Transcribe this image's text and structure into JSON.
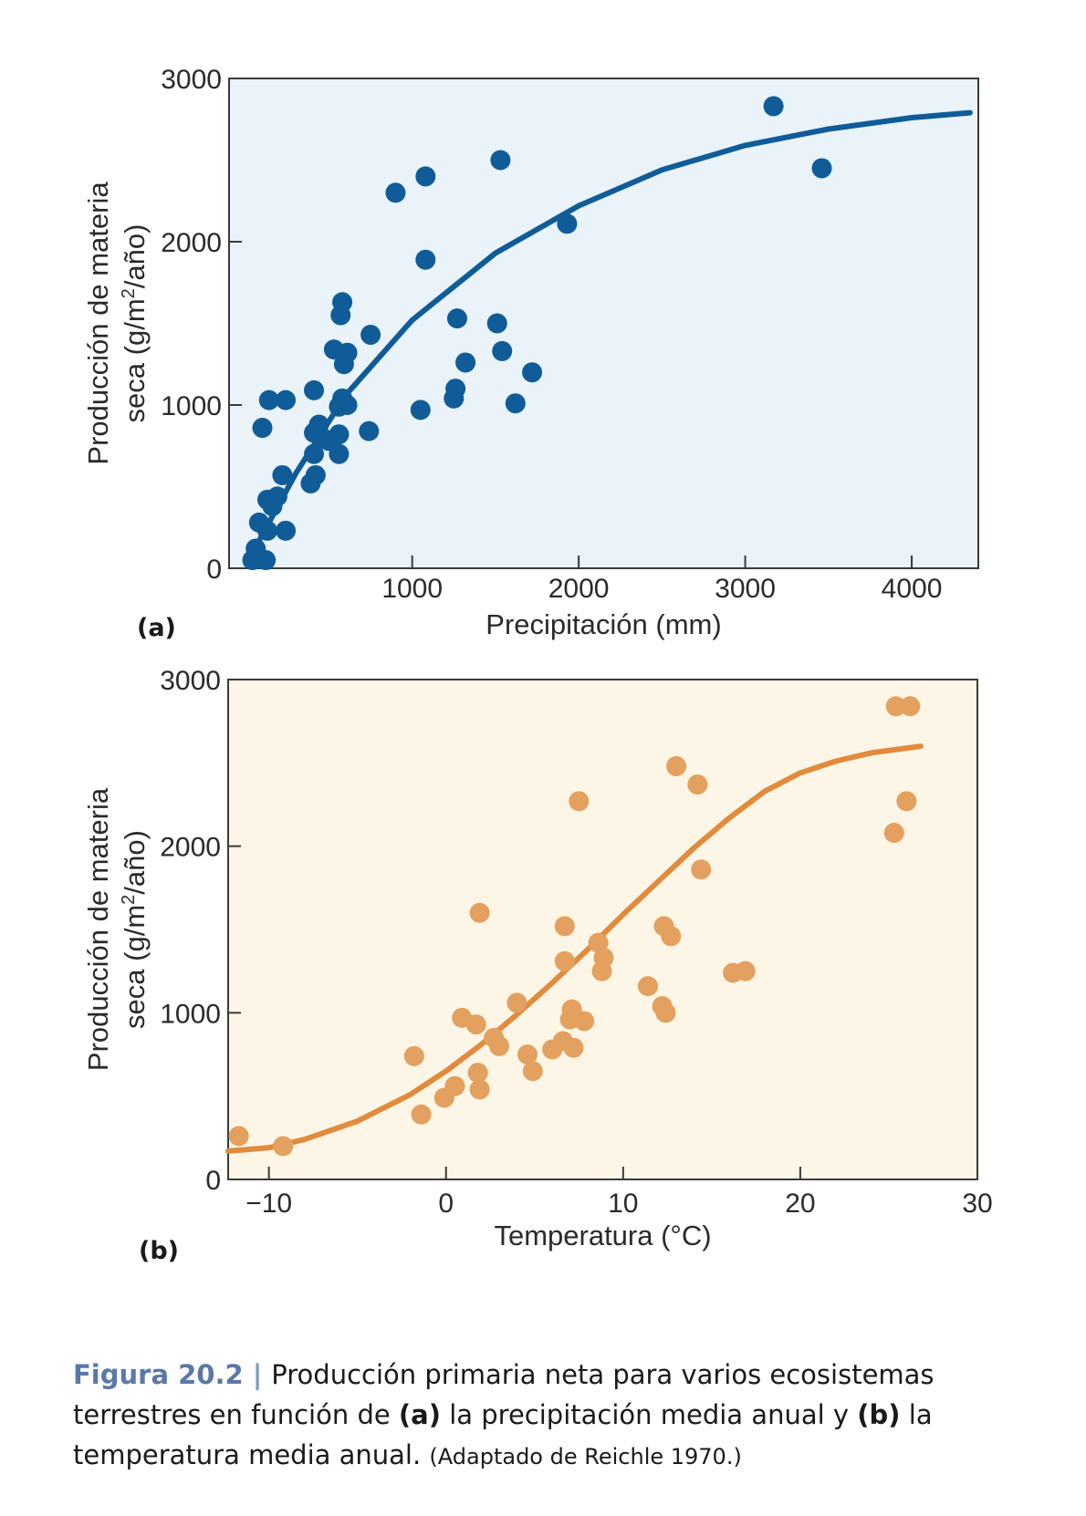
{
  "chart_data": [
    {
      "type": "scatter",
      "panel_label": "(a)",
      "xlabel": "Precipitación (mm)",
      "ylabel_line1": "Producción de materia",
      "ylabel_line2_prefix": "seca (g/m",
      "ylabel_line2_sup": "2",
      "ylabel_line2_suffix": "/año)",
      "xlim": [
        -100,
        4400
      ],
      "ylim": [
        0,
        3000
      ],
      "xticks": [
        1000,
        2000,
        3000,
        4000
      ],
      "xtick_labels": [
        "1000",
        "2000",
        "3000",
        "4000"
      ],
      "yticks": [
        0,
        1000,
        2000,
        3000
      ],
      "ytick_labels": [
        "0",
        "1000",
        "2000",
        "3000"
      ],
      "background_color": "#e9f3f9",
      "point_color": "#0f5c98",
      "curve_color": "#0f5c98",
      "points": [
        {
          "x": 40,
          "y": 50
        },
        {
          "x": 60,
          "y": 120
        },
        {
          "x": 120,
          "y": 50
        },
        {
          "x": 80,
          "y": 280
        },
        {
          "x": 130,
          "y": 230
        },
        {
          "x": 160,
          "y": 380
        },
        {
          "x": 130,
          "y": 420
        },
        {
          "x": 190,
          "y": 440
        },
        {
          "x": 220,
          "y": 570
        },
        {
          "x": 240,
          "y": 230
        },
        {
          "x": 100,
          "y": 860
        },
        {
          "x": 140,
          "y": 1030
        },
        {
          "x": 240,
          "y": 1030
        },
        {
          "x": 390,
          "y": 520
        },
        {
          "x": 420,
          "y": 570
        },
        {
          "x": 410,
          "y": 700
        },
        {
          "x": 410,
          "y": 830
        },
        {
          "x": 440,
          "y": 880
        },
        {
          "x": 460,
          "y": 800
        },
        {
          "x": 500,
          "y": 780
        },
        {
          "x": 410,
          "y": 1090
        },
        {
          "x": 530,
          "y": 1340
        },
        {
          "x": 560,
          "y": 700
        },
        {
          "x": 560,
          "y": 820
        },
        {
          "x": 560,
          "y": 990
        },
        {
          "x": 580,
          "y": 1040
        },
        {
          "x": 610,
          "y": 1000
        },
        {
          "x": 570,
          "y": 1550
        },
        {
          "x": 580,
          "y": 1630
        },
        {
          "x": 590,
          "y": 1250
        },
        {
          "x": 610,
          "y": 1320
        },
        {
          "x": 740,
          "y": 840
        },
        {
          "x": 750,
          "y": 1430
        },
        {
          "x": 900,
          "y": 2300
        },
        {
          "x": 1080,
          "y": 2400
        },
        {
          "x": 1080,
          "y": 1890
        },
        {
          "x": 1050,
          "y": 970
        },
        {
          "x": 1250,
          "y": 1040
        },
        {
          "x": 1260,
          "y": 1100
        },
        {
          "x": 1270,
          "y": 1530
        },
        {
          "x": 1320,
          "y": 1260
        },
        {
          "x": 1510,
          "y": 1500
        },
        {
          "x": 1530,
          "y": 2500
        },
        {
          "x": 1540,
          "y": 1330
        },
        {
          "x": 1620,
          "y": 1010
        },
        {
          "x": 1720,
          "y": 1200
        },
        {
          "x": 1930,
          "y": 2110
        },
        {
          "x": 3170,
          "y": 2830
        },
        {
          "x": 3460,
          "y": 2450
        }
      ],
      "curve": [
        {
          "x": 60,
          "y": 130
        },
        {
          "x": 300,
          "y": 580
        },
        {
          "x": 600,
          "y": 1060
        },
        {
          "x": 1000,
          "y": 1520
        },
        {
          "x": 1500,
          "y": 1930
        },
        {
          "x": 2000,
          "y": 2220
        },
        {
          "x": 2500,
          "y": 2440
        },
        {
          "x": 3000,
          "y": 2590
        },
        {
          "x": 3500,
          "y": 2690
        },
        {
          "x": 4000,
          "y": 2760
        },
        {
          "x": 4350,
          "y": 2790
        }
      ]
    },
    {
      "type": "scatter",
      "panel_label": "(b)",
      "xlabel": "Temperatura (°C)",
      "ylabel_line1": "Producción de materia",
      "ylabel_line2_prefix": "seca (g/m",
      "ylabel_line2_sup": "2",
      "ylabel_line2_suffix": "/año)",
      "xlim": [
        -12.3,
        30
      ],
      "ylim": [
        0,
        3000
      ],
      "xticks": [
        -10,
        0,
        10,
        20,
        30
      ],
      "xtick_labels": [
        "−10",
        "0",
        "10",
        "20",
        "30"
      ],
      "yticks": [
        0,
        1000,
        2000,
        3000
      ],
      "ytick_labels": [
        "0",
        "1000",
        "2000",
        "3000"
      ],
      "background_color": "#fdf6e6",
      "point_color": "#e4a05e",
      "curve_color": "#e28b3d",
      "points": [
        {
          "x": -11.7,
          "y": 260
        },
        {
          "x": -9.2,
          "y": 200
        },
        {
          "x": -1.8,
          "y": 740
        },
        {
          "x": -1.4,
          "y": 390
        },
        {
          "x": -0.1,
          "y": 490
        },
        {
          "x": 0.5,
          "y": 560
        },
        {
          "x": 0.9,
          "y": 970
        },
        {
          "x": 1.7,
          "y": 930
        },
        {
          "x": 1.8,
          "y": 640
        },
        {
          "x": 1.9,
          "y": 540
        },
        {
          "x": 1.9,
          "y": 1600
        },
        {
          "x": 2.7,
          "y": 850
        },
        {
          "x": 3.0,
          "y": 800
        },
        {
          "x": 4.0,
          "y": 1060
        },
        {
          "x": 4.6,
          "y": 750
        },
        {
          "x": 4.9,
          "y": 650
        },
        {
          "x": 6.0,
          "y": 780
        },
        {
          "x": 6.6,
          "y": 830
        },
        {
          "x": 6.7,
          "y": 1310
        },
        {
          "x": 6.7,
          "y": 1520
        },
        {
          "x": 7.0,
          "y": 960
        },
        {
          "x": 7.1,
          "y": 1020
        },
        {
          "x": 7.2,
          "y": 790
        },
        {
          "x": 7.5,
          "y": 2270
        },
        {
          "x": 7.8,
          "y": 950
        },
        {
          "x": 8.6,
          "y": 1420
        },
        {
          "x": 8.8,
          "y": 1250
        },
        {
          "x": 8.9,
          "y": 1330
        },
        {
          "x": 11.4,
          "y": 1160
        },
        {
          "x": 12.2,
          "y": 1040
        },
        {
          "x": 12.3,
          "y": 1520
        },
        {
          "x": 12.4,
          "y": 1000
        },
        {
          "x": 12.7,
          "y": 1460
        },
        {
          "x": 13.0,
          "y": 2480
        },
        {
          "x": 14.2,
          "y": 2370
        },
        {
          "x": 14.4,
          "y": 1860
        },
        {
          "x": 16.2,
          "y": 1240
        },
        {
          "x": 16.9,
          "y": 1250
        },
        {
          "x": 25.3,
          "y": 2080
        },
        {
          "x": 25.4,
          "y": 2840
        },
        {
          "x": 26.0,
          "y": 2270
        },
        {
          "x": 26.2,
          "y": 2840
        }
      ],
      "curve": [
        {
          "x": -12.3,
          "y": 170
        },
        {
          "x": -10,
          "y": 190
        },
        {
          "x": -8,
          "y": 240
        },
        {
          "x": -5,
          "y": 350
        },
        {
          "x": -2,
          "y": 510
        },
        {
          "x": 0,
          "y": 650
        },
        {
          "x": 2,
          "y": 810
        },
        {
          "x": 4,
          "y": 990
        },
        {
          "x": 6,
          "y": 1180
        },
        {
          "x": 8,
          "y": 1380
        },
        {
          "x": 10,
          "y": 1590
        },
        {
          "x": 12,
          "y": 1790
        },
        {
          "x": 14,
          "y": 1990
        },
        {
          "x": 16,
          "y": 2170
        },
        {
          "x": 18,
          "y": 2330
        },
        {
          "x": 20,
          "y": 2440
        },
        {
          "x": 22,
          "y": 2510
        },
        {
          "x": 24,
          "y": 2560
        },
        {
          "x": 26.8,
          "y": 2600
        }
      ]
    }
  ],
  "caption": {
    "figure_label": "Figura 20.2",
    "separator": "|",
    "text_1": "Producción primaria neta para varios ecosistemas terrestres en función de ",
    "bold_a": "(a)",
    "text_2": " la precipitación media anual y ",
    "bold_b": "(b)",
    "text_3": " la temperatura media anual. ",
    "source": "(Adaptado de Reichle 1970.)"
  }
}
